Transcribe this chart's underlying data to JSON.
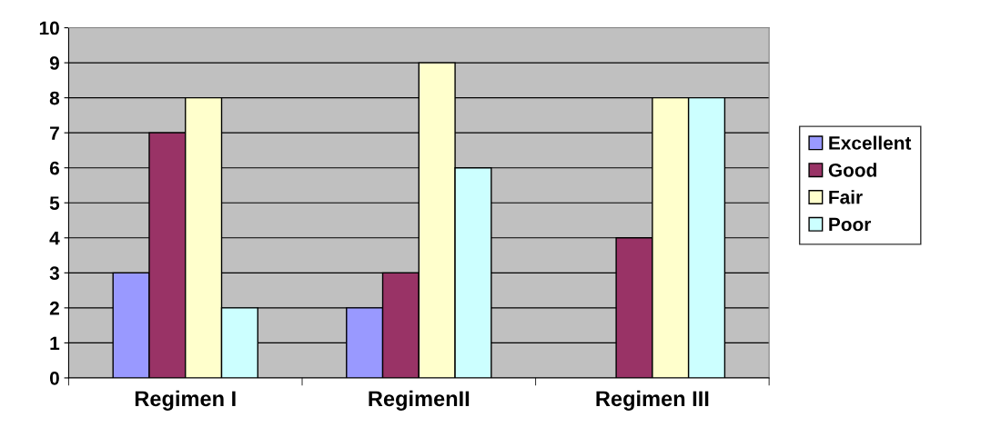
{
  "chart_data": {
    "type": "bar",
    "categories": [
      "Regimen I",
      "RegimenII",
      "Regimen III"
    ],
    "series": [
      {
        "name": "Excellent",
        "color": "#9999ff",
        "values": [
          3,
          2,
          null
        ]
      },
      {
        "name": "Good",
        "color": "#993366",
        "values": [
          7,
          3,
          4
        ]
      },
      {
        "name": "Fair",
        "color": "#ffffcc",
        "values": [
          8,
          9,
          8
        ]
      },
      {
        "name": "Poor",
        "color": "#ccffff",
        "values": [
          2,
          6,
          8
        ]
      }
    ],
    "ylim": [
      0,
      10
    ],
    "yticks": [
      0,
      1,
      2,
      3,
      4,
      5,
      6,
      7,
      8,
      9,
      10
    ],
    "grid": "y",
    "legend": "right"
  }
}
